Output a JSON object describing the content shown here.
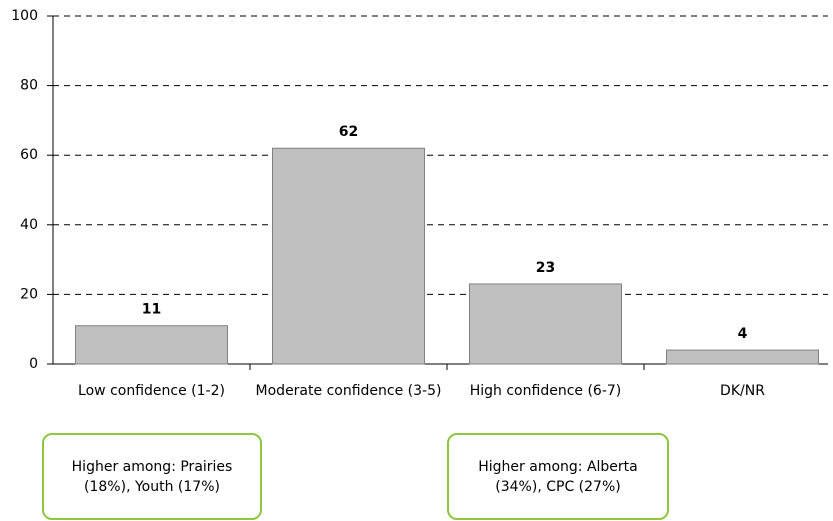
{
  "chart_data": {
    "type": "bar",
    "categories": [
      "Low confidence (1-2)",
      "Moderate confidence (3-5)",
      "High confidence (6-7)",
      "DK/NR"
    ],
    "values": [
      11,
      62,
      23,
      4
    ],
    "color": "#c0c0c0",
    "ylim": [
      0,
      100
    ],
    "yticks": [
      0,
      20,
      40,
      60,
      80,
      100
    ],
    "grid": true,
    "annotations": [
      "Higher among: Prairies (18%), Youth (17%)",
      "Higher among: Alberta (34%), CPC (27%)"
    ]
  }
}
